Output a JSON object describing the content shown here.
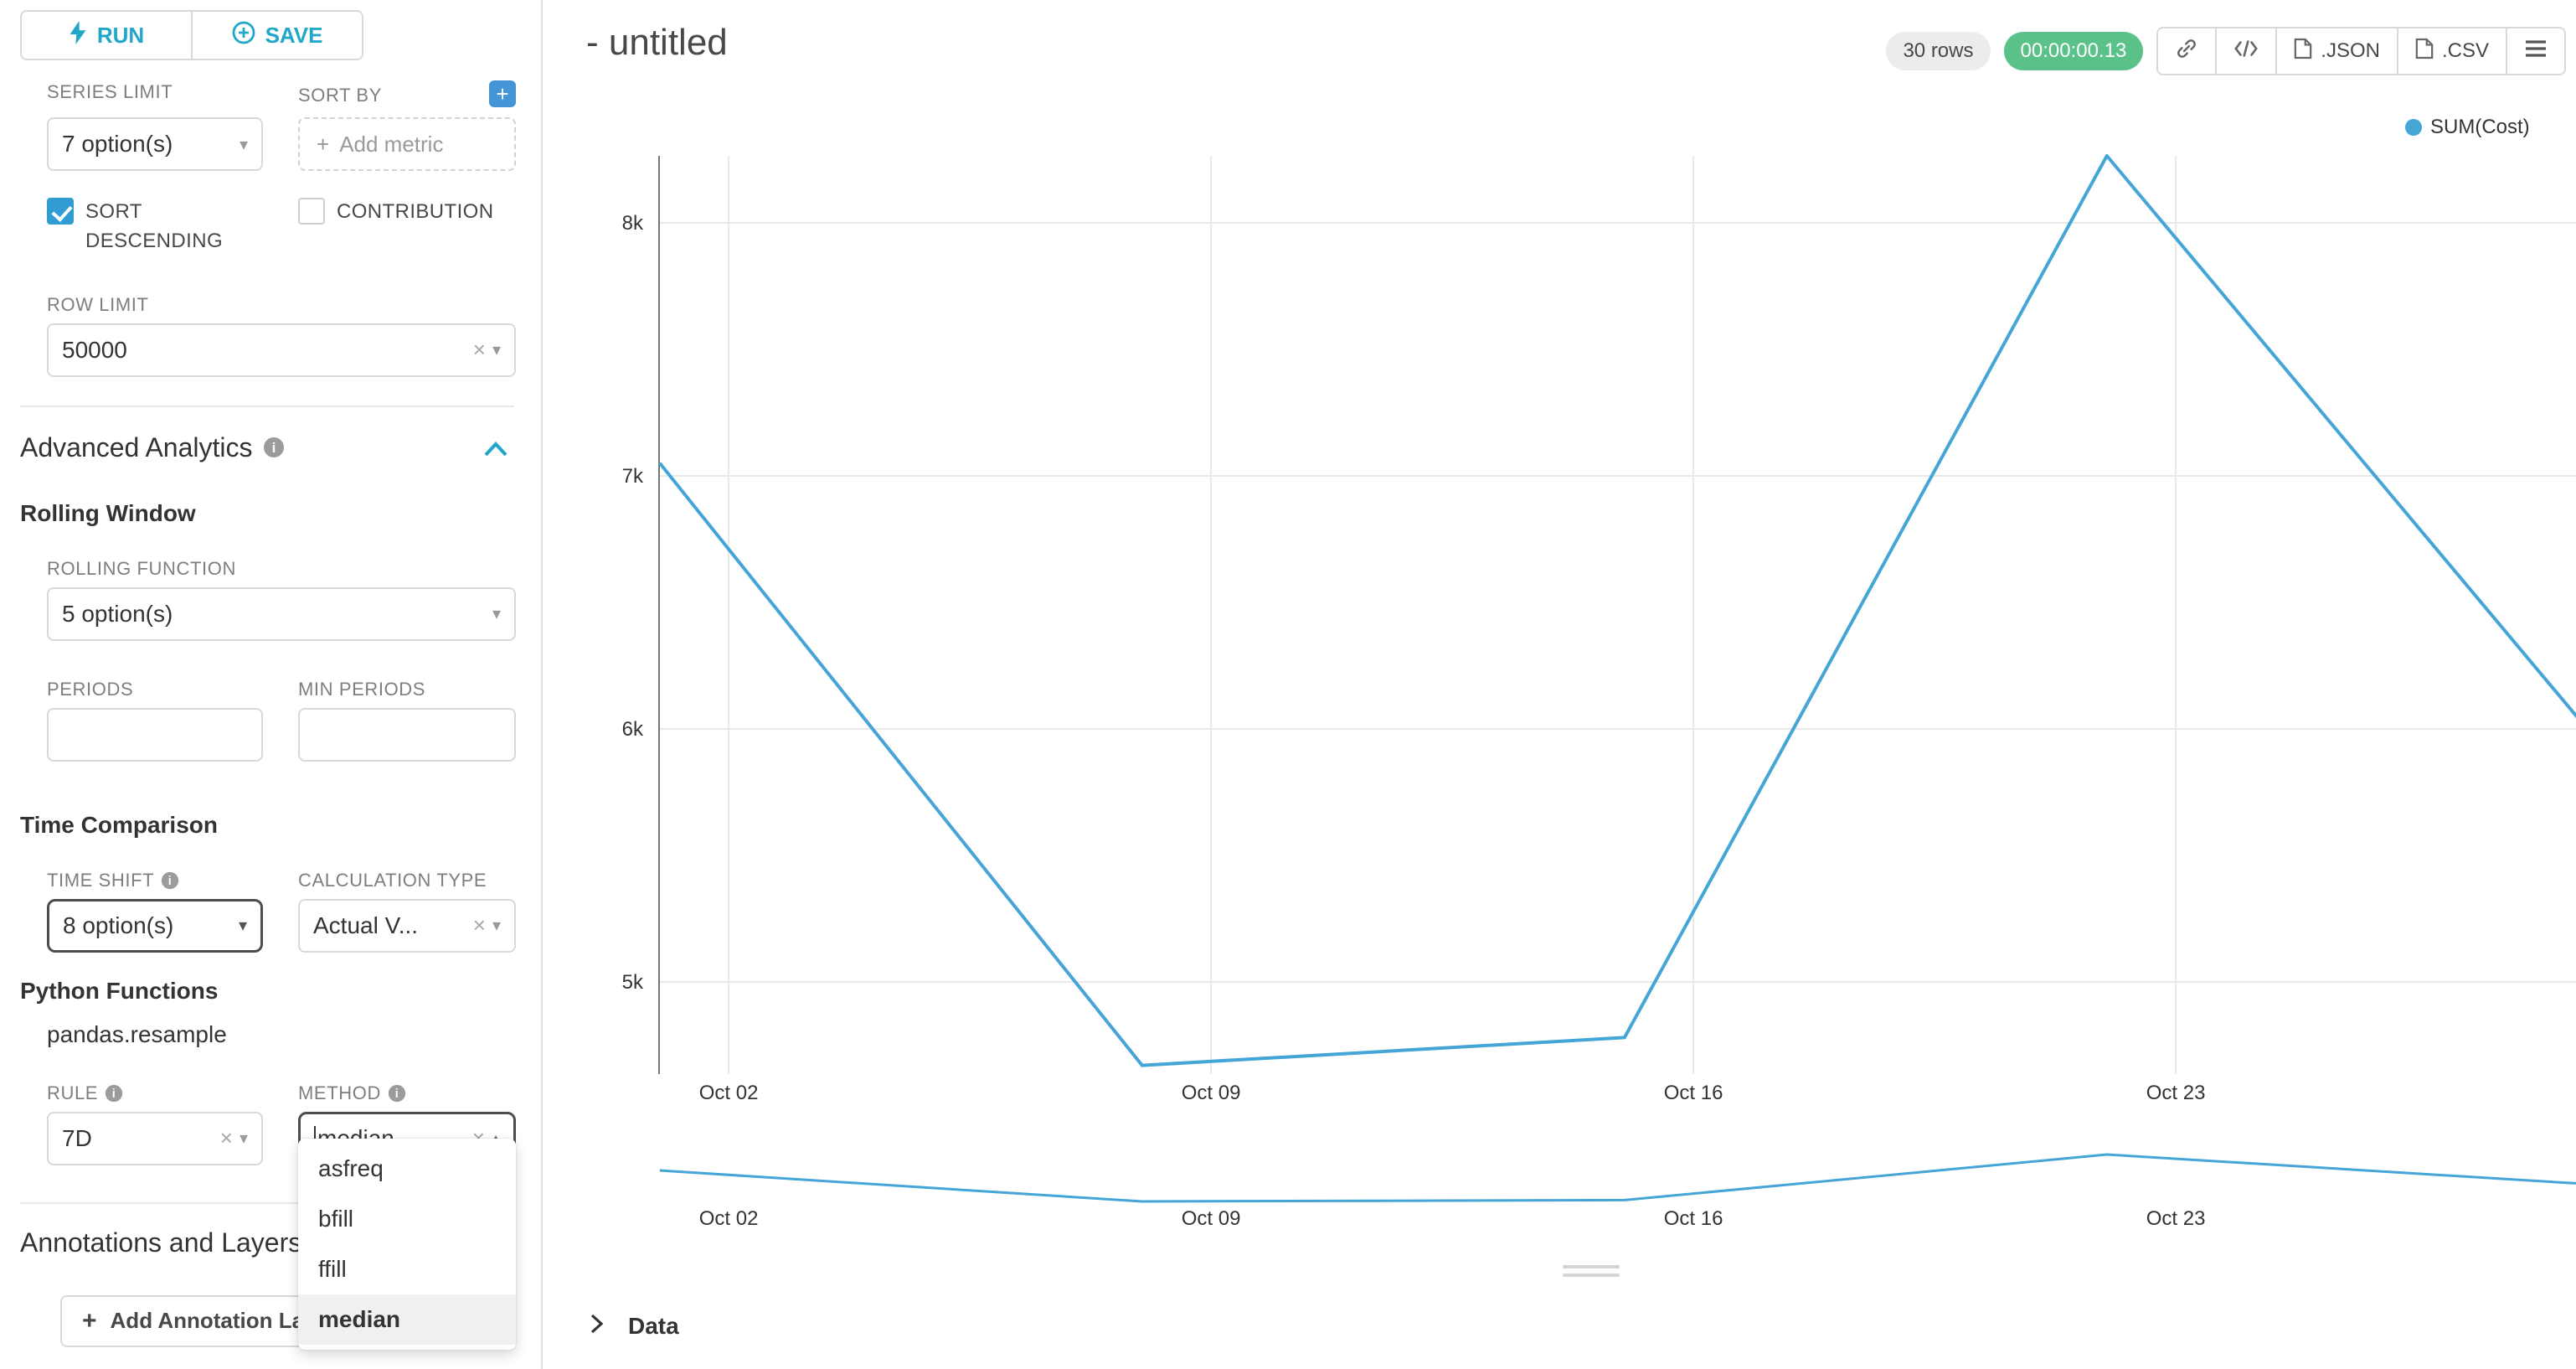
{
  "toolbar": {
    "run_label": "RUN",
    "save_label": "SAVE"
  },
  "panel": {
    "series_limit": {
      "label": "SERIES LIMIT",
      "value": "7 option(s)"
    },
    "sort_by": {
      "label": "SORT BY",
      "placeholder": "Add metric"
    },
    "sort_descending_label": "SORT DESCENDING",
    "contribution_label": "CONTRIBUTION",
    "row_limit": {
      "label": "ROW LIMIT",
      "value": "50000"
    },
    "advanced_title": "Advanced Analytics",
    "rolling_window": {
      "title": "Rolling Window",
      "rolling_function": {
        "label": "ROLLING FUNCTION",
        "value": "5 option(s)"
      },
      "periods_label": "PERIODS",
      "min_periods_label": "MIN PERIODS"
    },
    "time_comparison": {
      "title": "Time Comparison",
      "time_shift": {
        "label": "TIME SHIFT",
        "value": "8 option(s)"
      },
      "calculation_type": {
        "label": "CALCULATION TYPE",
        "value": "Actual V..."
      }
    },
    "python_functions": {
      "title": "Python Functions",
      "subtitle": "pandas.resample",
      "rule": {
        "label": "RULE",
        "value": "7D"
      },
      "method": {
        "label": "METHOD",
        "value": "median",
        "selected": "median",
        "options": [
          "asfreq",
          "bfill",
          "ffill",
          "median"
        ]
      }
    },
    "annotations_title": "Annotations and Layers",
    "add_annotation_label": "Add Annotation Layer"
  },
  "header": {
    "title": "- untitled",
    "rows_badge": "30 rows",
    "timer_badge": "00:00:00.13",
    "export_json_label": ".JSON",
    "export_csv_label": ".CSV"
  },
  "chart_data": {
    "type": "line",
    "title": "",
    "legend_position": "top-right",
    "grid": true,
    "x": [
      "Oct 01",
      "Oct 08",
      "Oct 15",
      "Oct 22",
      "Oct 29"
    ],
    "x_day_offsets": [
      0,
      7,
      14,
      21,
      28
    ],
    "series": [
      {
        "name": "SUM(Cost)",
        "values": [
          7050,
          4670,
          4780,
          8265,
          5990
        ]
      }
    ],
    "x_tick_labels": [
      "Oct 02",
      "Oct 09",
      "Oct 16",
      "Oct 23"
    ],
    "x_tick_day_offsets": [
      1,
      8,
      15,
      22
    ],
    "y_tick_labels": [
      "5k",
      "6k",
      "7k",
      "8k"
    ],
    "y_tick_values": [
      5000,
      6000,
      7000,
      8000
    ],
    "ylim": [
      4600,
      8400
    ],
    "mini_preview": true
  },
  "data_panel_label": "Data",
  "colors": {
    "primary": "#20A7C9",
    "checkbox": "#2F9CD4",
    "add": "#4596D9",
    "line": "#45A5D6",
    "success": "#5AC189"
  }
}
